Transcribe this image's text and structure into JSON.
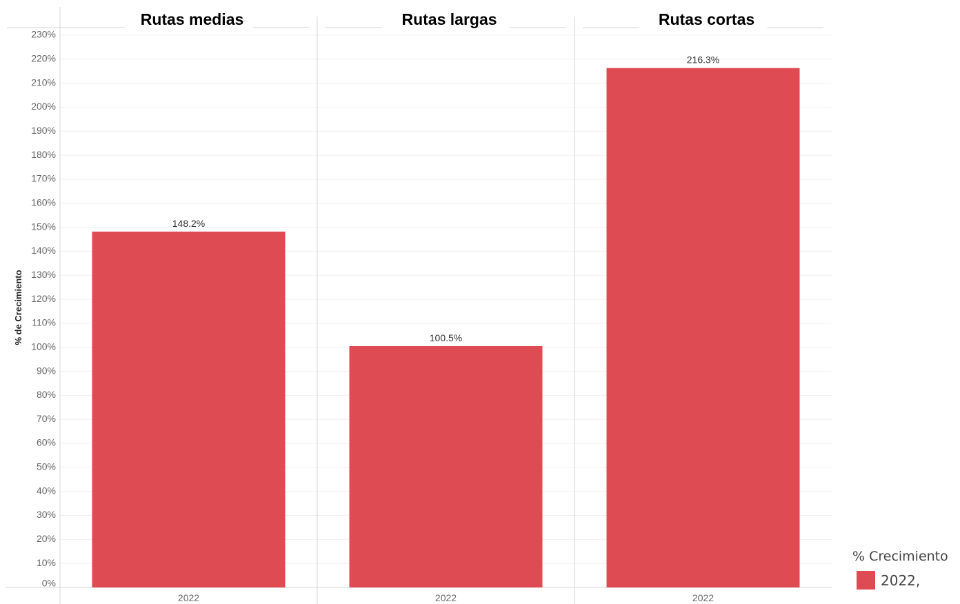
{
  "chart_data": {
    "type": "bar",
    "panels": [
      "Rutas medias",
      "Rutas largas",
      "Rutas cortas"
    ],
    "categories": [
      "2022",
      "2022",
      "2022"
    ],
    "values": [
      148.2,
      100.5,
      216.3
    ],
    "data_labels": [
      "148.2%",
      "100.5%",
      "216.3%"
    ],
    "ylabel": "% de Crecimiento",
    "ylim": [
      0,
      230
    ],
    "y_ticks": [
      0,
      10,
      20,
      30,
      40,
      50,
      60,
      70,
      80,
      90,
      100,
      110,
      120,
      130,
      140,
      150,
      160,
      170,
      180,
      190,
      200,
      210,
      220,
      230
    ],
    "y_tick_labels": [
      "0%",
      "10%",
      "20%",
      "30%",
      "40%",
      "50%",
      "60%",
      "70%",
      "80%",
      "90%",
      "100%",
      "110%",
      "120%",
      "130%",
      "140%",
      "150%",
      "160%",
      "170%",
      "180%",
      "190%",
      "200%",
      "210%",
      "220%",
      "230%"
    ],
    "grid": true,
    "legend": {
      "title": "% Crecimiento",
      "items": [
        "2022,"
      ],
      "position": "bottom-right"
    },
    "bar_color": "#df4b52"
  }
}
